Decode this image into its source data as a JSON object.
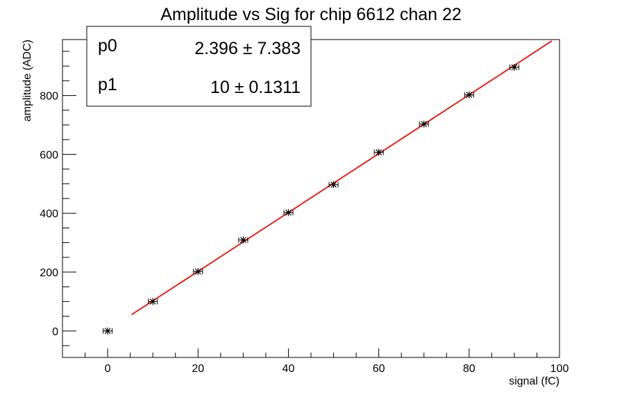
{
  "chart_data": {
    "type": "scatter",
    "title": "Amplitude vs Sig for chip 6612 chan 22",
    "xlabel": "signal (fC)",
    "ylabel": "amplitude (ADC)",
    "xlim": [
      -10,
      100
    ],
    "ylim": [
      -90,
      990
    ],
    "x_ticks": [
      0,
      20,
      40,
      60,
      80,
      100
    ],
    "y_ticks": [
      0,
      200,
      400,
      600,
      800
    ],
    "grid": false,
    "points": [
      {
        "x": 0,
        "y": 0,
        "xerr": 1
      },
      {
        "x": 10,
        "y": 100,
        "xerr": 1
      },
      {
        "x": 20,
        "y": 202,
        "xerr": 1
      },
      {
        "x": 30,
        "y": 309,
        "xerr": 1
      },
      {
        "x": 40,
        "y": 402,
        "xerr": 1
      },
      {
        "x": 50,
        "y": 497,
        "xerr": 1
      },
      {
        "x": 60,
        "y": 607,
        "xerr": 1
      },
      {
        "x": 70,
        "y": 703,
        "xerr": 1
      },
      {
        "x": 80,
        "y": 802,
        "xerr": 1
      },
      {
        "x": 90,
        "y": 896,
        "xerr": 1
      }
    ],
    "fit": {
      "x_range": [
        5.3,
        98.3
      ],
      "p0": 2.396,
      "p1": 10,
      "color": "#e8211a"
    },
    "stats_box": [
      {
        "name": "p0",
        "value": "2.396 ± 7.383"
      },
      {
        "name": "p1",
        "value": "10 ± 0.1311"
      }
    ],
    "marker_color": "#000000"
  }
}
